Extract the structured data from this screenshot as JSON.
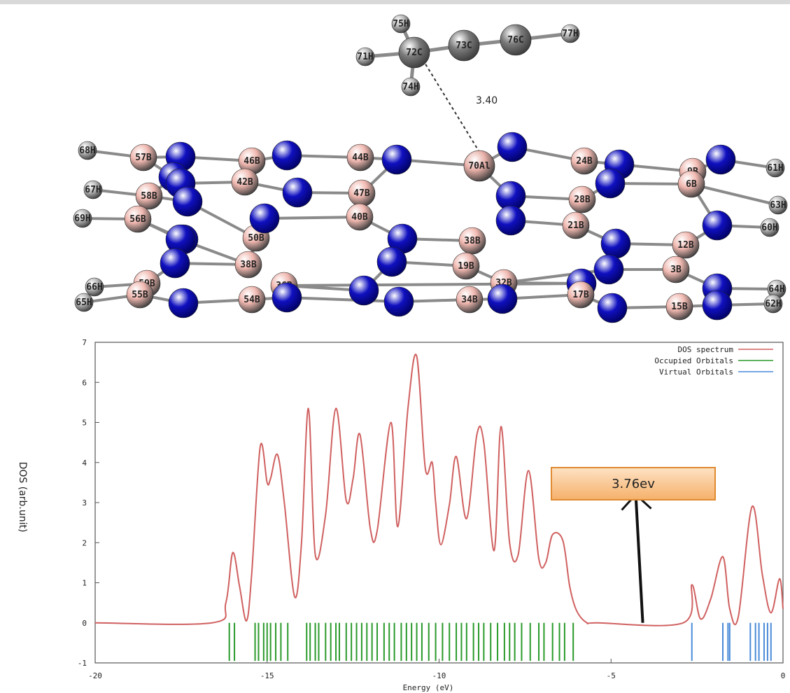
{
  "molecule": {
    "distance_label": "3.40",
    "adsorbate_atoms": [
      {
        "label": "75H",
        "el": "H"
      },
      {
        "label": "72C",
        "el": "C"
      },
      {
        "label": "73C",
        "el": "C"
      },
      {
        "label": "76C",
        "el": "C"
      },
      {
        "label": "77H",
        "el": "H"
      },
      {
        "label": "71H",
        "el": "H"
      },
      {
        "label": "74H",
        "el": "H"
      }
    ],
    "sheet_atoms": [
      {
        "label": "68H",
        "el": "H"
      },
      {
        "label": "57B",
        "el": "B"
      },
      {
        "label": "",
        "el": "N"
      },
      {
        "label": "",
        "el": "N"
      },
      {
        "label": "46B",
        "el": "B"
      },
      {
        "label": "",
        "el": "N"
      },
      {
        "label": "44B",
        "el": "B"
      },
      {
        "label": "",
        "el": "N"
      },
      {
        "label": "70Al",
        "el": "Al"
      },
      {
        "label": "",
        "el": "N"
      },
      {
        "label": "24B",
        "el": "B"
      },
      {
        "label": "",
        "el": "N"
      },
      {
        "label": "9B",
        "el": "B"
      },
      {
        "label": "",
        "el": "N"
      },
      {
        "label": "61H",
        "el": "H"
      },
      {
        "label": "",
        "el": "N"
      },
      {
        "label": "42B",
        "el": "B"
      },
      {
        "label": "",
        "el": "N"
      },
      {
        "label": "6B",
        "el": "B"
      },
      {
        "label": "67H",
        "el": "H"
      },
      {
        "label": "58B",
        "el": "B"
      },
      {
        "label": "",
        "el": "N"
      },
      {
        "label": "47B",
        "el": "B"
      },
      {
        "label": "",
        "el": "N"
      },
      {
        "label": "28B",
        "el": "B"
      },
      {
        "label": "",
        "el": "N"
      },
      {
        "label": "63H",
        "el": "H"
      },
      {
        "label": "69H",
        "el": "H"
      },
      {
        "label": "56B",
        "el": "B"
      },
      {
        "label": "",
        "el": "N"
      },
      {
        "label": "40B",
        "el": "B"
      },
      {
        "label": "",
        "el": "N"
      },
      {
        "label": "21B",
        "el": "B"
      },
      {
        "label": "",
        "el": "N"
      },
      {
        "label": "60H",
        "el": "H"
      },
      {
        "label": "",
        "el": "N"
      },
      {
        "label": "50B",
        "el": "B"
      },
      {
        "label": "",
        "el": "N"
      },
      {
        "label": "38B",
        "el": "B"
      },
      {
        "label": "",
        "el": "N"
      },
      {
        "label": "12B",
        "el": "B"
      },
      {
        "label": "",
        "el": "N"
      },
      {
        "label": "38B",
        "el": "B"
      },
      {
        "label": "",
        "el": "N"
      },
      {
        "label": "19B",
        "el": "B"
      },
      {
        "label": "",
        "el": "N"
      },
      {
        "label": "3B",
        "el": "B"
      },
      {
        "label": "66H",
        "el": "H"
      },
      {
        "label": "59B",
        "el": "B"
      },
      {
        "label": "",
        "el": "N"
      },
      {
        "label": "36B",
        "el": "B"
      },
      {
        "label": "",
        "el": "N"
      },
      {
        "label": "32B",
        "el": "B"
      },
      {
        "label": "",
        "el": "N"
      },
      {
        "label": "",
        "el": "N"
      },
      {
        "label": "64H",
        "el": "H"
      },
      {
        "label": "65H",
        "el": "H"
      },
      {
        "label": "55B",
        "el": "B"
      },
      {
        "label": "",
        "el": "N"
      },
      {
        "label": "54B",
        "el": "B"
      },
      {
        "label": "",
        "el": "N"
      },
      {
        "label": "",
        "el": "N"
      },
      {
        "label": "34B",
        "el": "B"
      },
      {
        "label": "",
        "el": "N"
      },
      {
        "label": "17B",
        "el": "B"
      },
      {
        "label": "",
        "el": "N"
      },
      {
        "label": "15B",
        "el": "B"
      },
      {
        "label": "",
        "el": "N"
      },
      {
        "label": "62H",
        "el": "H"
      }
    ],
    "colors": {
      "H": "#b8b8b8",
      "C": "#7a7a7a",
      "B": "#f0b8b0",
      "N": "#1010c0",
      "Al": "#e8b0a8"
    }
  },
  "chart_data": {
    "type": "line",
    "xlabel": "Energy (eV)",
    "ylabel": "DOS (arb.unit)",
    "xlim": [
      -20,
      0
    ],
    "ylim": [
      -1,
      7
    ],
    "xticks": [
      -20,
      -15,
      -10,
      -5,
      0
    ],
    "yticks": [
      -1,
      0,
      1,
      2,
      3,
      4,
      5,
      6,
      7
    ],
    "grid": false,
    "legend_position": "top-right",
    "legend": [
      {
        "name": "DOS spectrum",
        "color": "#d06060"
      },
      {
        "name": "Occupied Orbitals",
        "color": "#2a9a2a"
      },
      {
        "name": "Virtual Orbitals",
        "color": "#4a8ad8"
      }
    ],
    "annotation": {
      "text": "3.76ev",
      "x": -4.2,
      "y_start": 0,
      "y_end": 3.2
    },
    "series": [
      {
        "name": "DOS spectrum",
        "x": [
          -20,
          -16.6,
          -16.2,
          -16.0,
          -15.8,
          -15.6,
          -15.45,
          -15.2,
          -15.0,
          -14.9,
          -14.7,
          -14.5,
          -14.2,
          -14.0,
          -13.8,
          -13.6,
          -13.3,
          -13.0,
          -12.7,
          -12.5,
          -12.3,
          -12.0,
          -11.8,
          -11.4,
          -11.2,
          -10.9,
          -10.65,
          -10.4,
          -10.2,
          -10.1,
          -9.95,
          -9.7,
          -9.5,
          -9.2,
          -8.9,
          -8.7,
          -8.4,
          -8.2,
          -7.95,
          -7.7,
          -7.4,
          -7.1,
          -6.9,
          -6.7,
          -6.4,
          -6.2,
          -6.0,
          -5.7,
          -5.4,
          -2.9,
          -2.65,
          -2.4,
          -2.1,
          -1.75,
          -1.55,
          -1.3,
          -0.9,
          -0.6,
          -0.35,
          -0.1,
          0
        ],
        "y": [
          0,
          0,
          0.5,
          1.75,
          0.9,
          0.05,
          1.2,
          4.4,
          3.5,
          3.6,
          4.2,
          3.0,
          0.65,
          2.0,
          5.35,
          1.7,
          2.7,
          5.35,
          3.05,
          3.6,
          4.7,
          2.35,
          2.3,
          5.0,
          2.4,
          5.4,
          6.65,
          3.85,
          4.0,
          3.0,
          1.95,
          2.95,
          4.15,
          2.6,
          4.7,
          4.5,
          1.8,
          4.9,
          2.0,
          1.7,
          3.8,
          1.6,
          1.5,
          2.2,
          2.05,
          0.9,
          0.3,
          0,
          0,
          0,
          0.95,
          0.1,
          0.6,
          1.65,
          0.35,
          0.15,
          2.9,
          1.2,
          0.25,
          1.1,
          0.35
        ]
      },
      {
        "name": "Occupied Orbitals",
        "lines": [
          -16.1,
          -15.95,
          -15.35,
          -15.25,
          -15.1,
          -15.0,
          -14.9,
          -14.75,
          -14.6,
          -14.4,
          -13.85,
          -13.75,
          -13.6,
          -13.5,
          -13.3,
          -13.15,
          -13.0,
          -12.9,
          -12.7,
          -12.55,
          -12.4,
          -12.25,
          -12.1,
          -11.95,
          -11.8,
          -11.6,
          -11.45,
          -11.3,
          -11.1,
          -10.95,
          -10.8,
          -10.65,
          -10.5,
          -10.3,
          -10.1,
          -9.9,
          -9.7,
          -9.5,
          -9.35,
          -9.2,
          -9.0,
          -8.85,
          -8.7,
          -8.5,
          -8.3,
          -8.1,
          -7.95,
          -7.8,
          -7.6,
          -7.35,
          -7.1,
          -6.95,
          -6.7,
          -6.5,
          -6.35,
          -6.1
        ]
      },
      {
        "name": "Virtual Orbitals",
        "lines": [
          -2.65,
          -1.75,
          -1.6,
          -1.55,
          -0.95,
          -0.8,
          -0.7,
          -0.55,
          -0.45,
          -0.35
        ]
      }
    ]
  }
}
